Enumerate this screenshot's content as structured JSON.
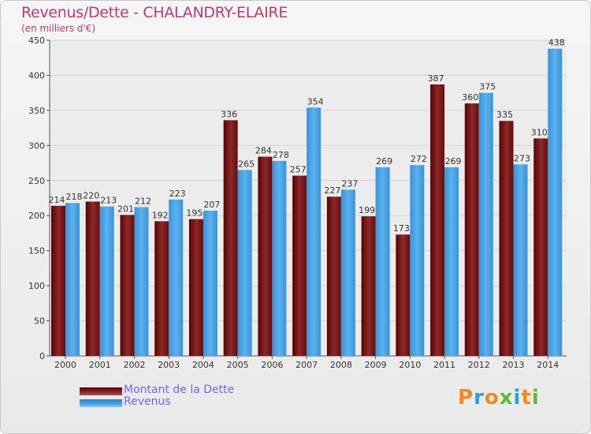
{
  "chart_data": {
    "type": "bar",
    "title": "Revenus/Dette - CHALANDRY-ELAIRE",
    "subtitle": "(en milliers d'€)",
    "categories": [
      "2000",
      "2001",
      "2002",
      "2003",
      "2004",
      "2005",
      "2006",
      "2007",
      "2008",
      "2009",
      "2010",
      "2011",
      "2012",
      "2013",
      "2014"
    ],
    "series": [
      {
        "name": "Montant de la Dette",
        "color": "#7b0f0f",
        "values": [
          214,
          220,
          201,
          192,
          195,
          336,
          284,
          257,
          227,
          199,
          173,
          387,
          360,
          335,
          310
        ]
      },
      {
        "name": "Revenus",
        "color": "#4aa3e6",
        "values": [
          218,
          213,
          212,
          223,
          207,
          265,
          278,
          354,
          237,
          269,
          272,
          269,
          375,
          273,
          438
        ]
      }
    ],
    "yticks": [
      0,
      50,
      100,
      150,
      200,
      250,
      300,
      350,
      400,
      450
    ],
    "ylim": [
      0,
      450
    ],
    "xlabel": "",
    "ylabel": "",
    "grid": true
  },
  "legend": {
    "items": [
      {
        "label": "Montant de la Dette",
        "color": "#7b0f0f"
      },
      {
        "label": "Revenus",
        "color": "#4aa3e6"
      }
    ]
  },
  "logo": {
    "letters": [
      "P",
      "r",
      "o",
      "x",
      "i",
      "t",
      "i"
    ],
    "colors": [
      "#f08a1c",
      "#2f9fdb",
      "#f08a1c",
      "#67b82f",
      "#2f9fdb",
      "#f08a1c",
      "#67b82f"
    ]
  }
}
